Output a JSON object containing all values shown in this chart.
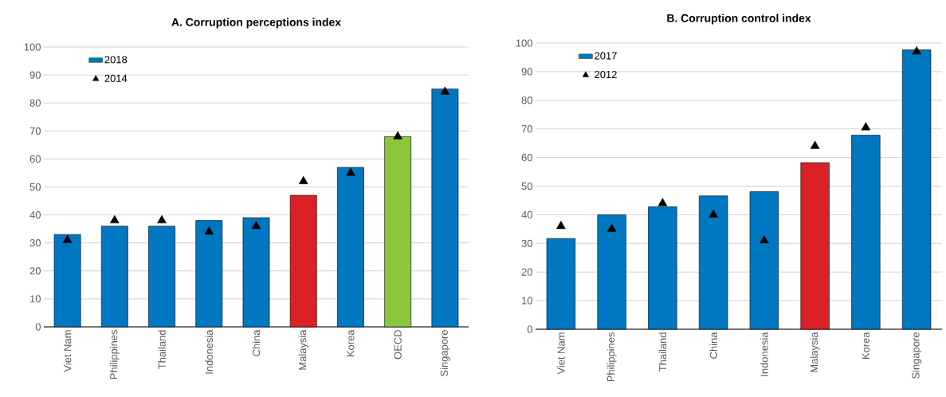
{
  "chart_data": [
    {
      "type": "bar",
      "title": "A. Corruption perceptions index",
      "categories": [
        "Viet Nam",
        "Philippines",
        "Thailand",
        "Indonesia",
        "China",
        "Malaysia",
        "Korea",
        "OECD",
        "Singapore"
      ],
      "ylim": [
        0,
        100
      ],
      "yticks": [
        0,
        10,
        20,
        30,
        40,
        50,
        60,
        70,
        80,
        90,
        100
      ],
      "grid": "y",
      "legend": "top left",
      "series": [
        {
          "name": "2018",
          "color": "#0078c1",
          "colors": [
            "#0078c1",
            "#0078c1",
            "#0078c1",
            "#0078c1",
            "#0078c1",
            "#da2128",
            "#0078c1",
            "#8cc63f",
            "#0078c1"
          ],
          "values": [
            33,
            36,
            36,
            38,
            39,
            47,
            57,
            68,
            85
          ]
        },
        {
          "name": "2014",
          "type": "scatter",
          "color": "#000000",
          "marker": "triangle",
          "values": [
            31,
            38,
            38,
            34,
            36,
            52,
            55,
            68,
            84
          ]
        }
      ]
    },
    {
      "type": "bar",
      "title": "B. Corruption control index",
      "categories": [
        "Viet Nam",
        "Philippines",
        "Thailand",
        "China",
        "Indonesia",
        "Malaysia",
        "Korea",
        "Singapore"
      ],
      "ylim": [
        0,
        100
      ],
      "yticks": [
        0,
        10,
        20,
        30,
        40,
        50,
        60,
        70,
        80,
        90,
        100
      ],
      "grid": "y",
      "legend": "top left",
      "series": [
        {
          "name": "2017",
          "color": "#0078c1",
          "colors": [
            "#0078c1",
            "#0078c1",
            "#0078c1",
            "#0078c1",
            "#0078c1",
            "#da2128",
            "#0078c1",
            "#0078c1"
          ],
          "values": [
            31.7,
            40,
            42.8,
            46.6,
            48.1,
            58.2,
            67.8,
            97.6
          ]
        },
        {
          "name": "2012",
          "type": "scatter",
          "color": "#000000",
          "marker": "triangle",
          "values": [
            36,
            35,
            44,
            40,
            31,
            64,
            70.5,
            97
          ]
        }
      ]
    }
  ]
}
